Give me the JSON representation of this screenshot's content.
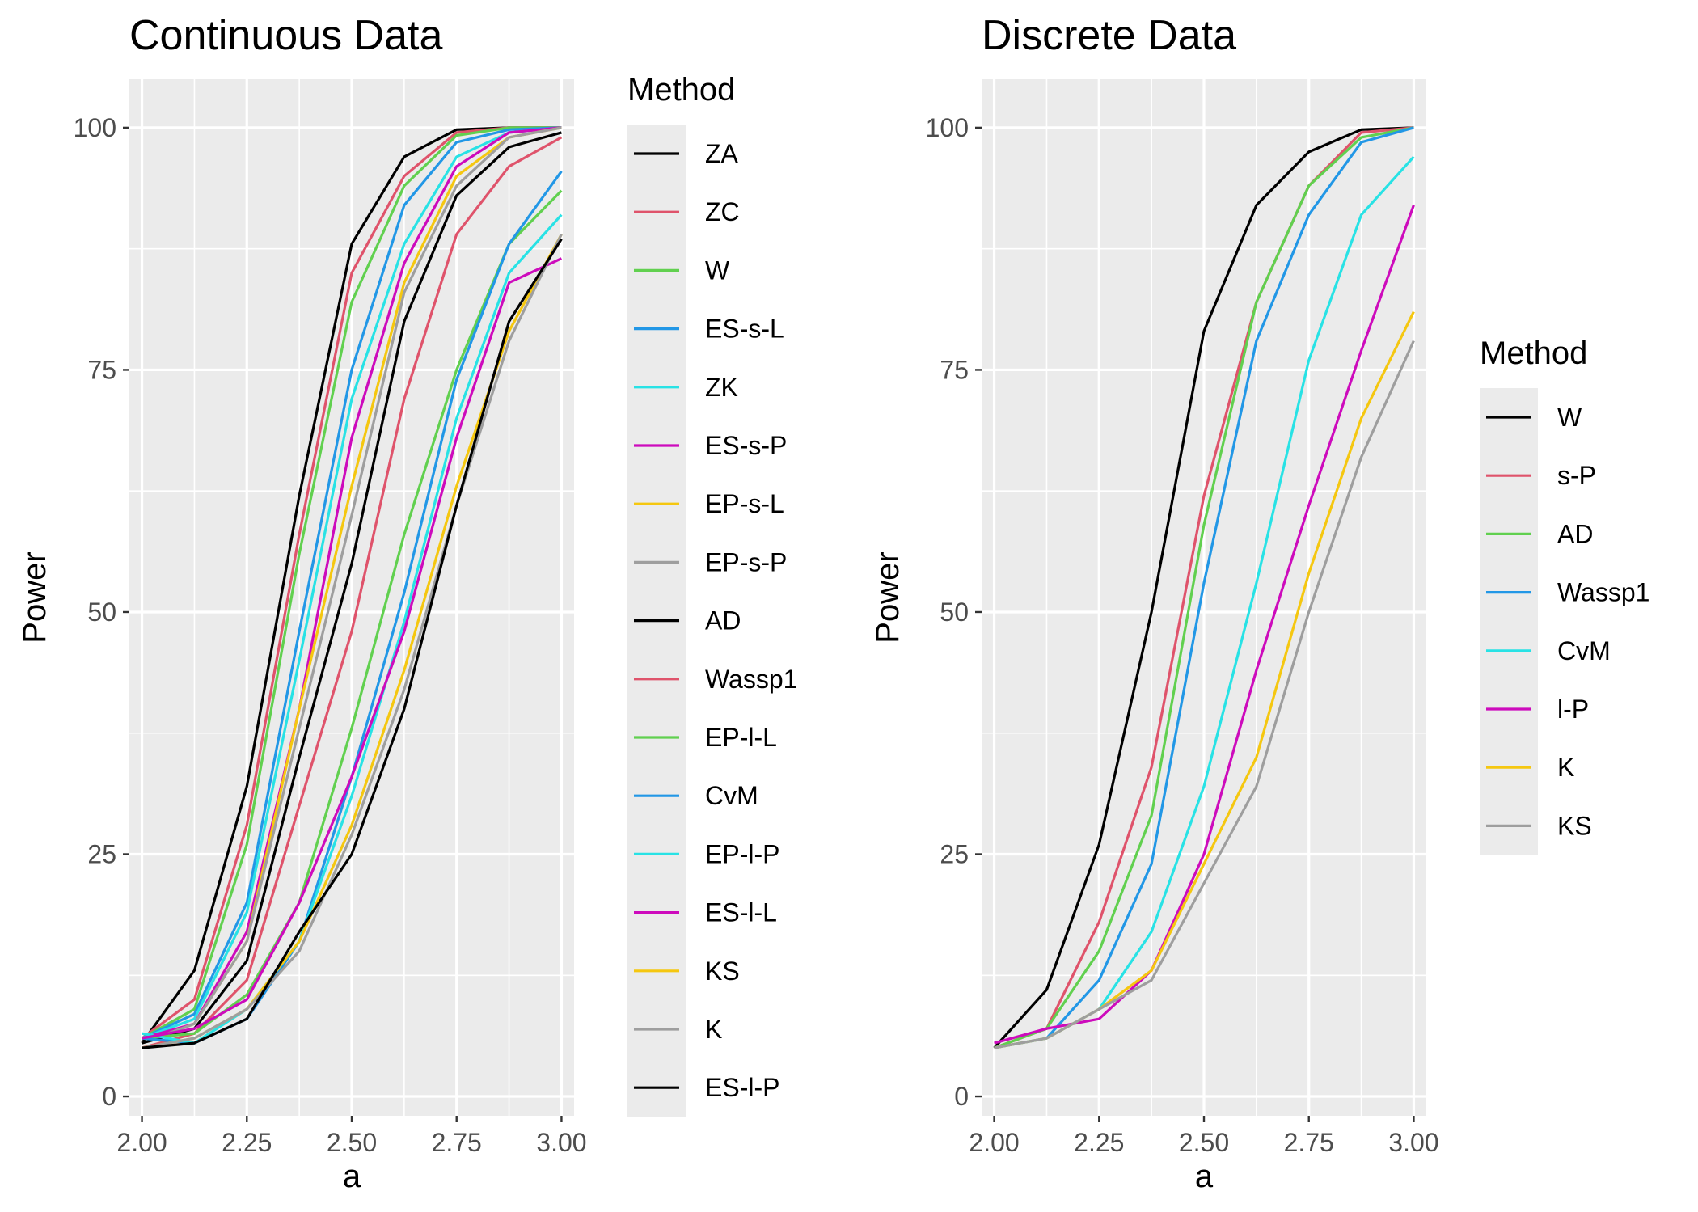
{
  "chart_data": [
    {
      "type": "line",
      "title": "Continuous Data",
      "xlabel": "a",
      "ylabel": "Power",
      "xlim": [
        1.97,
        3.03
      ],
      "ylim": [
        -2,
        105
      ],
      "xticks": [
        2.0,
        2.25,
        2.5,
        2.75,
        3.0
      ],
      "xtick_labels": [
        "2.00",
        "2.25",
        "2.50",
        "2.75",
        "3.00"
      ],
      "yticks": [
        0,
        25,
        50,
        75,
        100
      ],
      "ytick_labels": [
        "0",
        "25",
        "50",
        "75",
        "100"
      ],
      "grid": true,
      "legend_title": "Method",
      "legend_position": "right",
      "x": [
        2.0,
        2.125,
        2.25,
        2.375,
        2.5,
        2.625,
        2.75,
        2.875,
        3.0
      ],
      "series": [
        {
          "name": "ZA",
          "color": "#000000",
          "values": [
            5.5,
            13,
            32,
            62,
            88,
            97,
            99.8,
            100,
            100
          ]
        },
        {
          "name": "ZC",
          "color": "#DF536B",
          "values": [
            6,
            10,
            28,
            58,
            85,
            95,
            99.5,
            100,
            100
          ]
        },
        {
          "name": "W",
          "color": "#61D04F",
          "values": [
            6,
            9,
            26,
            56,
            82,
            94,
            99.2,
            100,
            100
          ]
        },
        {
          "name": "ES-s-L",
          "color": "#2297E6",
          "values": [
            6,
            8.5,
            20,
            48,
            75,
            92,
            98.5,
            99.8,
            100
          ]
        },
        {
          "name": "ZK",
          "color": "#28E2E5",
          "values": [
            6,
            8,
            19,
            45,
            72,
            88,
            97,
            99.5,
            100
          ]
        },
        {
          "name": "ES-s-P",
          "color": "#CD0BBC",
          "values": [
            6,
            7.5,
            17,
            40,
            68,
            86,
            96,
            99.5,
            100
          ]
        },
        {
          "name": "EP-s-L",
          "color": "#F5C710",
          "values": [
            5.5,
            7.5,
            16,
            40,
            63,
            84,
            95,
            99,
            100
          ]
        },
        {
          "name": "EP-s-P",
          "color": "#9E9E9E",
          "values": [
            5.5,
            7.5,
            16,
            38,
            60,
            83,
            94,
            99,
            100
          ]
        },
        {
          "name": "AD",
          "color": "#000000",
          "values": [
            5.5,
            7,
            14,
            35,
            55,
            80,
            93,
            98,
            99.5
          ]
        },
        {
          "name": "Wassp1",
          "color": "#DF536B",
          "values": [
            5,
            6.5,
            12,
            30,
            48,
            72,
            89,
            96,
            99
          ]
        },
        {
          "name": "EP-l-L",
          "color": "#61D04F",
          "values": [
            6,
            6.5,
            10.5,
            20,
            38,
            58,
            75,
            88,
            93.5
          ]
        },
        {
          "name": "CvM",
          "color": "#2297E6",
          "values": [
            6,
            5.5,
            8,
            16,
            33,
            52,
            74,
            88,
            95.5
          ]
        },
        {
          "name": "EP-l-P",
          "color": "#28E2E5",
          "values": [
            6.5,
            5.5,
            9,
            16,
            31,
            49,
            70,
            85,
            91
          ]
        },
        {
          "name": "ES-l-L",
          "color": "#CD0BBC",
          "values": [
            6,
            7,
            10,
            20,
            33,
            48,
            68,
            84,
            86.5
          ]
        },
        {
          "name": "KS",
          "color": "#F5C710",
          "values": [
            5,
            6,
            9,
            16,
            28,
            44,
            63,
            79,
            89
          ]
        },
        {
          "name": "K",
          "color": "#9E9E9E",
          "values": [
            5,
            6,
            9,
            15,
            27,
            42,
            61,
            78,
            89
          ]
        },
        {
          "name": "ES-l-P",
          "color": "#000000",
          "values": [
            5,
            5.5,
            8,
            17,
            25,
            40,
            61,
            80,
            88.5
          ]
        }
      ]
    },
    {
      "type": "line",
      "title": "Discrete Data",
      "xlabel": "a",
      "ylabel": "Power",
      "xlim": [
        1.97,
        3.03
      ],
      "ylim": [
        -2,
        105
      ],
      "xticks": [
        2.0,
        2.25,
        2.5,
        2.75,
        3.0
      ],
      "xtick_labels": [
        "2.00",
        "2.25",
        "2.50",
        "2.75",
        "3.00"
      ],
      "yticks": [
        0,
        25,
        50,
        75,
        100
      ],
      "ytick_labels": [
        "0",
        "25",
        "50",
        "75",
        "100"
      ],
      "grid": true,
      "legend_title": "Method",
      "legend_position": "right",
      "x": [
        2.0,
        2.125,
        2.25,
        2.375,
        2.5,
        2.625,
        2.75,
        2.875,
        3.0
      ],
      "series": [
        {
          "name": "W",
          "color": "#000000",
          "values": [
            5,
            11,
            26,
            50,
            79,
            92,
            97.5,
            99.8,
            100
          ]
        },
        {
          "name": "s-P",
          "color": "#DF536B",
          "values": [
            5,
            7,
            18,
            34,
            62,
            82,
            94,
            99.5,
            100
          ]
        },
        {
          "name": "AD",
          "color": "#61D04F",
          "values": [
            5,
            7,
            15,
            29,
            59,
            82,
            94,
            99,
            100
          ]
        },
        {
          "name": "Wassp1",
          "color": "#2297E6",
          "values": [
            5,
            6,
            12,
            24,
            53,
            78,
            91,
            98.5,
            100
          ]
        },
        {
          "name": "CvM",
          "color": "#28E2E5",
          "values": [
            5,
            6,
            9,
            17,
            32,
            53,
            76,
            91,
            97
          ]
        },
        {
          "name": "l-P",
          "color": "#CD0BBC",
          "values": [
            5.5,
            7,
            8,
            13,
            25,
            44,
            61,
            77,
            92
          ]
        },
        {
          "name": "K",
          "color": "#F5C710",
          "values": [
            5,
            6,
            9,
            13,
            24,
            35,
            54,
            70,
            81
          ]
        },
        {
          "name": "KS",
          "color": "#9E9E9E",
          "values": [
            5,
            6,
            9,
            12,
            22,
            32,
            50,
            66,
            78
          ]
        }
      ]
    }
  ]
}
